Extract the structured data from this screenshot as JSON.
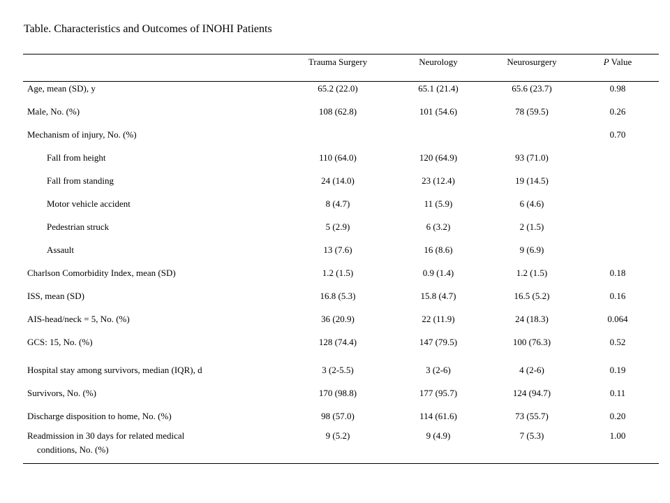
{
  "title": "Table. Characteristics and Outcomes of INOHI Patients",
  "header": {
    "col1": "Trauma Surgery",
    "col2": "Neurology",
    "col3": "Neurosurgery",
    "col4_italic": "P",
    "col4_rest": " Value"
  },
  "rows": [
    {
      "label": "Age, mean (SD), y",
      "c1": "65.2 (22.0)",
      "c2": "65.1 (21.4)",
      "c3": "65.6 (23.7)",
      "p": "0.98"
    },
    {
      "label": "Male, No. (%)",
      "c1": "108 (62.8)",
      "c2": "101 (54.6)",
      "c3": "78 (59.5)",
      "p": "0.26"
    },
    {
      "label": "Mechanism of injury, No. (%)",
      "c1": "",
      "c2": "",
      "c3": "",
      "p": "0.70"
    },
    {
      "label": "Fall from height",
      "c1": "110 (64.0)",
      "c2": "120 (64.9)",
      "c3": "93 (71.0)",
      "p": ""
    },
    {
      "label": "Fall from standing",
      "c1": "24 (14.0)",
      "c2": "23 (12.4)",
      "c3": "19 (14.5)",
      "p": ""
    },
    {
      "label": "Motor vehicle accident",
      "c1": "8 (4.7)",
      "c2": "11 (5.9)",
      "c3": "6 (4.6)",
      "p": ""
    },
    {
      "label": "Pedestrian struck",
      "c1": "5 (2.9)",
      "c2": "6 (3.2)",
      "c3": "2 (1.5)",
      "p": ""
    },
    {
      "label": "Assault",
      "c1": "13 (7.6)",
      "c2": "16 (8.6)",
      "c3": "9 (6.9)",
      "p": ""
    },
    {
      "label": "Charlson Comorbidity Index,  mean (SD)",
      "c1": "1.2 (1.5)",
      "c2": "0.9 (1.4)",
      "c3": "1.2 (1.5)",
      "p": "0.18"
    },
    {
      "label": "ISS, mean (SD)",
      "c1": "16.8 (5.3)",
      "c2": "15.8 (4.7)",
      "c3": "16.5 (5.2)",
      "p": "0.16"
    },
    {
      "label": "AIS-head/neck = 5, No. (%)",
      "c1": "36 (20.9)",
      "c2": "22 (11.9)",
      "c3": "24 (18.3)",
      "p": "0.064"
    },
    {
      "label": "GCS: 15, No. (%)",
      "c1": "128 (74.4)",
      "c2": "147 (79.5)",
      "c3": "100 (76.3)",
      "p": "0.52"
    },
    {
      "label": "Hospital stay among survivors, median (IQR), d",
      "c1": "3 (2-5.5)",
      "c2": "3 (2-6)",
      "c3": "4 (2-6)",
      "p": "0.19"
    },
    {
      "label": "Survivors, No. (%)",
      "c1": "170 (98.8)",
      "c2": "177 (95.7)",
      "c3": "124 (94.7)",
      "p": "0.11"
    },
    {
      "label": "Discharge disposition to home, No. (%)",
      "c1": "98 (57.0)",
      "c2": "114 (61.6)",
      "c3": "73 (55.7)",
      "p": "0.20"
    },
    {
      "label": "Readmission in 30 days for related medical",
      "label_cont": "conditions, No. (%)",
      "c1": "9 (5.2)",
      "c2": "9 (4.9)",
      "c3": "7 (5.3)",
      "p": "1.00"
    }
  ]
}
